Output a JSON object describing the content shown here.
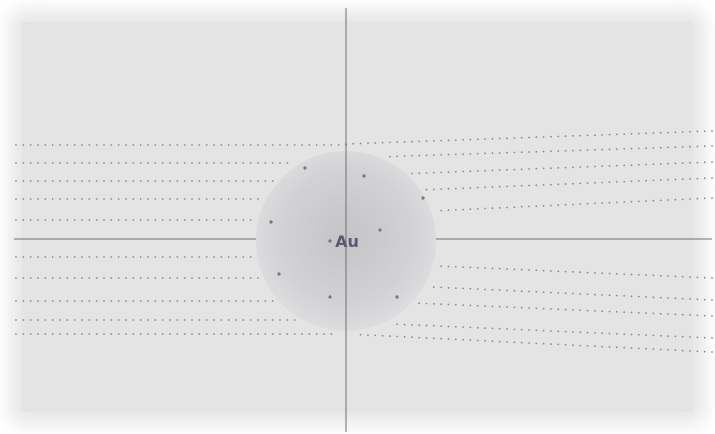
{
  "atom": {
    "symbol": "Au"
  },
  "colors": {
    "panel": "#e6e6e6",
    "axis": "#6f6f6f",
    "beam_dots": "#8a8a8a",
    "atom_fill": "#cfcfd1",
    "atom_label": "#5c5870",
    "nucleus_dots": "#777777"
  }
}
